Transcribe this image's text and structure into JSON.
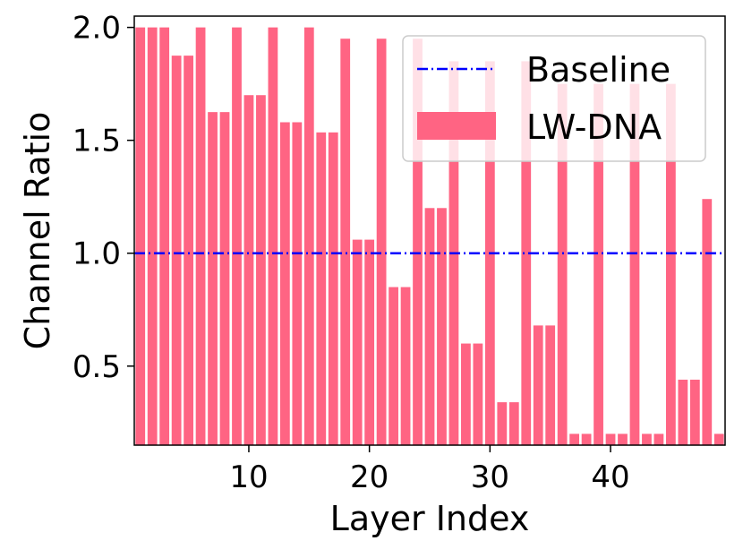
{
  "chart_data": {
    "type": "bar",
    "xlabel": "Layer Index",
    "ylabel": "Channel Ratio",
    "xlim": [
      0.5,
      49.5
    ],
    "ylim": [
      0.15,
      2.05
    ],
    "xticks": [
      10,
      20,
      30,
      40
    ],
    "yticks": [
      "0.5",
      "1.0",
      "1.5",
      "2.0"
    ],
    "legend_position": "top-right",
    "grid": false,
    "x": [
      1,
      2,
      3,
      4,
      5,
      6,
      7,
      8,
      9,
      10,
      11,
      12,
      13,
      14,
      15,
      16,
      17,
      18,
      19,
      20,
      21,
      22,
      23,
      24,
      25,
      26,
      27,
      28,
      29,
      30,
      31,
      32,
      33,
      34,
      35,
      36,
      37,
      38,
      39,
      40,
      41,
      42,
      43,
      44,
      45,
      46,
      47,
      48,
      49
    ],
    "series": [
      {
        "name": "LW-DNA",
        "kind": "bar",
        "color": "#ff6483",
        "values": [
          2.0,
          2.0,
          2.0,
          1.875,
          1.875,
          2.0,
          1.625,
          1.625,
          2.0,
          1.7,
          1.7,
          2.0,
          1.58,
          1.58,
          2.0,
          1.535,
          1.535,
          1.95,
          1.06,
          1.06,
          1.95,
          0.85,
          0.85,
          1.95,
          1.2,
          1.2,
          1.85,
          0.6,
          0.6,
          1.85,
          0.34,
          0.34,
          1.85,
          0.68,
          0.68,
          1.75,
          0.2,
          0.2,
          1.75,
          0.2,
          0.2,
          1.75,
          0.2,
          0.2,
          1.75,
          0.44,
          0.44,
          1.24,
          0.2
        ]
      },
      {
        "name": "Baseline",
        "kind": "line",
        "color": "#0000ff",
        "value": 1.0
      }
    ]
  }
}
